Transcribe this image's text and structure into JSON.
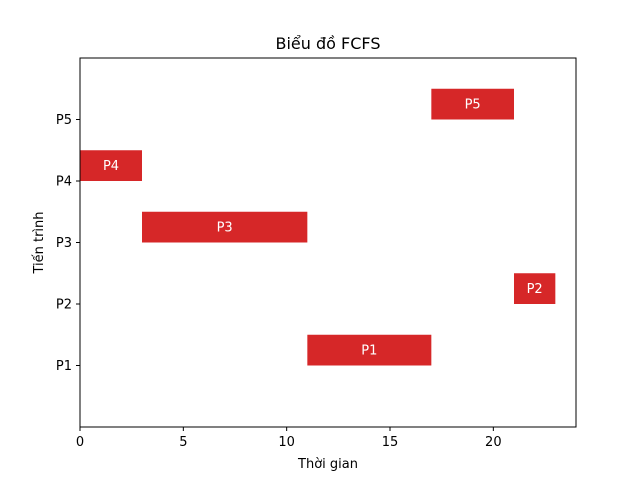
{
  "chart_data": {
    "type": "bar",
    "title": "Biểu đồ FCFS",
    "xlabel": "Thời gian",
    "ylabel": "Tiến trình",
    "xlim": [
      0,
      24
    ],
    "ylim": [
      0,
      6
    ],
    "xticks": [
      0,
      5,
      10,
      15,
      20
    ],
    "yticks": [
      {
        "value": 1,
        "label": "P1"
      },
      {
        "value": 2,
        "label": "P2"
      },
      {
        "value": 3,
        "label": "P3"
      },
      {
        "value": 4,
        "label": "P4"
      },
      {
        "value": 5,
        "label": "P5"
      }
    ],
    "bar_color": "#d62728",
    "label_color": "#ffffff",
    "grid": false,
    "tasks": [
      {
        "name": "P1",
        "row": 1,
        "start": 11,
        "end": 17
      },
      {
        "name": "P2",
        "row": 2,
        "start": 21,
        "end": 23
      },
      {
        "name": "P3",
        "row": 3,
        "start": 3,
        "end": 11
      },
      {
        "name": "P4",
        "row": 4,
        "start": 0,
        "end": 3
      },
      {
        "name": "P5",
        "row": 5,
        "start": 17,
        "end": 21
      }
    ]
  }
}
